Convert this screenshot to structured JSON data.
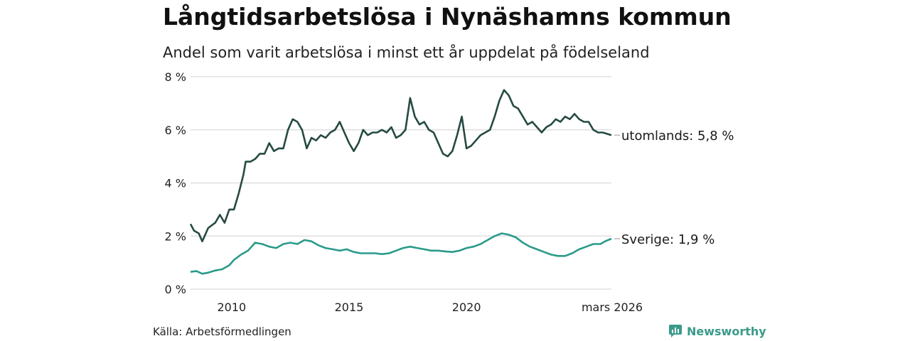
{
  "title": "Långtidsarbetslösa i Nynäshamns kommun",
  "subtitle": "Andel som varit arbetslösa i minst ett år uppdelat på födelseland",
  "source": "Källa: Arbetsförmedlingen",
  "brand": {
    "name": "Newsworthy",
    "icon": "newsworthy-logo-icon",
    "color": "#3a9a8a"
  },
  "chart_data": {
    "type": "line",
    "ylim": [
      0,
      8
    ],
    "xlim": [
      2008.25,
      2026.17
    ],
    "y_ticks": [
      0,
      2,
      4,
      6,
      8
    ],
    "y_tick_labels": [
      "0 %",
      "2 %",
      "4 %",
      "6 %",
      "8 %"
    ],
    "x_ticks": [
      2010,
      2015,
      2020,
      2026.17
    ],
    "x_tick_labels": [
      "2010",
      "2015",
      "2020",
      "mars 2026"
    ],
    "grid": true,
    "series": [
      {
        "name": "utomlands",
        "label": "utomlands: 5,8 %",
        "color": "#254a42",
        "points": [
          [
            2008.25,
            2.45
          ],
          [
            2008.4,
            2.2
          ],
          [
            2008.6,
            2.1
          ],
          [
            2008.75,
            1.8
          ],
          [
            2009.0,
            2.3
          ],
          [
            2009.3,
            2.5
          ],
          [
            2009.5,
            2.8
          ],
          [
            2009.7,
            2.5
          ],
          [
            2009.9,
            3.0
          ],
          [
            2010.1,
            3.0
          ],
          [
            2010.3,
            3.6
          ],
          [
            2010.5,
            4.3
          ],
          [
            2010.6,
            4.8
          ],
          [
            2010.8,
            4.8
          ],
          [
            2011.0,
            4.9
          ],
          [
            2011.2,
            5.1
          ],
          [
            2011.4,
            5.1
          ],
          [
            2011.6,
            5.5
          ],
          [
            2011.8,
            5.2
          ],
          [
            2012.0,
            5.3
          ],
          [
            2012.2,
            5.3
          ],
          [
            2012.4,
            6.0
          ],
          [
            2012.6,
            6.4
          ],
          [
            2012.8,
            6.3
          ],
          [
            2013.0,
            6.0
          ],
          [
            2013.2,
            5.3
          ],
          [
            2013.4,
            5.7
          ],
          [
            2013.6,
            5.6
          ],
          [
            2013.8,
            5.8
          ],
          [
            2014.0,
            5.7
          ],
          [
            2014.2,
            5.9
          ],
          [
            2014.4,
            6.0
          ],
          [
            2014.6,
            6.3
          ],
          [
            2014.8,
            5.9
          ],
          [
            2015.0,
            5.5
          ],
          [
            2015.2,
            5.2
          ],
          [
            2015.4,
            5.5
          ],
          [
            2015.6,
            6.0
          ],
          [
            2015.8,
            5.8
          ],
          [
            2016.0,
            5.9
          ],
          [
            2016.2,
            5.9
          ],
          [
            2016.4,
            6.0
          ],
          [
            2016.6,
            5.9
          ],
          [
            2016.8,
            6.1
          ],
          [
            2017.0,
            5.7
          ],
          [
            2017.2,
            5.8
          ],
          [
            2017.4,
            6.0
          ],
          [
            2017.6,
            7.2
          ],
          [
            2017.8,
            6.5
          ],
          [
            2018.0,
            6.2
          ],
          [
            2018.2,
            6.3
          ],
          [
            2018.4,
            6.0
          ],
          [
            2018.6,
            5.9
          ],
          [
            2018.8,
            5.5
          ],
          [
            2019.0,
            5.1
          ],
          [
            2019.2,
            5.0
          ],
          [
            2019.4,
            5.2
          ],
          [
            2019.6,
            5.8
          ],
          [
            2019.8,
            6.5
          ],
          [
            2020.0,
            5.3
          ],
          [
            2020.2,
            5.4
          ],
          [
            2020.4,
            5.6
          ],
          [
            2020.6,
            5.8
          ],
          [
            2020.8,
            5.9
          ],
          [
            2021.0,
            6.0
          ],
          [
            2021.2,
            6.5
          ],
          [
            2021.4,
            7.1
          ],
          [
            2021.6,
            7.5
          ],
          [
            2021.8,
            7.3
          ],
          [
            2022.0,
            6.9
          ],
          [
            2022.2,
            6.8
          ],
          [
            2022.4,
            6.5
          ],
          [
            2022.6,
            6.2
          ],
          [
            2022.8,
            6.3
          ],
          [
            2023.0,
            6.1
          ],
          [
            2023.2,
            5.9
          ],
          [
            2023.4,
            6.1
          ],
          [
            2023.6,
            6.2
          ],
          [
            2023.8,
            6.4
          ],
          [
            2024.0,
            6.3
          ],
          [
            2024.2,
            6.5
          ],
          [
            2024.4,
            6.4
          ],
          [
            2024.6,
            6.6
          ],
          [
            2024.8,
            6.4
          ],
          [
            2025.0,
            6.3
          ],
          [
            2025.2,
            6.3
          ],
          [
            2025.4,
            6.0
          ],
          [
            2025.6,
            5.9
          ],
          [
            2025.8,
            5.9
          ],
          [
            2026.17,
            5.8
          ]
        ]
      },
      {
        "name": "Sverige",
        "label": "Sverige: 1,9 %",
        "color": "#2a9a8a",
        "points": [
          [
            2008.25,
            0.65
          ],
          [
            2008.5,
            0.68
          ],
          [
            2008.75,
            0.58
          ],
          [
            2009.0,
            0.62
          ],
          [
            2009.3,
            0.7
          ],
          [
            2009.6,
            0.75
          ],
          [
            2009.9,
            0.9
          ],
          [
            2010.1,
            1.1
          ],
          [
            2010.4,
            1.3
          ],
          [
            2010.7,
            1.45
          ],
          [
            2011.0,
            1.75
          ],
          [
            2011.3,
            1.7
          ],
          [
            2011.6,
            1.6
          ],
          [
            2011.9,
            1.55
          ],
          [
            2012.2,
            1.7
          ],
          [
            2012.5,
            1.75
          ],
          [
            2012.8,
            1.7
          ],
          [
            2013.1,
            1.85
          ],
          [
            2013.4,
            1.8
          ],
          [
            2013.7,
            1.65
          ],
          [
            2014.0,
            1.55
          ],
          [
            2014.3,
            1.5
          ],
          [
            2014.6,
            1.45
          ],
          [
            2014.9,
            1.5
          ],
          [
            2015.2,
            1.4
          ],
          [
            2015.5,
            1.35
          ],
          [
            2015.8,
            1.35
          ],
          [
            2016.1,
            1.35
          ],
          [
            2016.4,
            1.32
          ],
          [
            2016.7,
            1.35
          ],
          [
            2017.0,
            1.45
          ],
          [
            2017.3,
            1.55
          ],
          [
            2017.6,
            1.6
          ],
          [
            2017.9,
            1.55
          ],
          [
            2018.2,
            1.5
          ],
          [
            2018.5,
            1.45
          ],
          [
            2018.8,
            1.45
          ],
          [
            2019.1,
            1.42
          ],
          [
            2019.4,
            1.4
          ],
          [
            2019.7,
            1.45
          ],
          [
            2020.0,
            1.55
          ],
          [
            2020.3,
            1.6
          ],
          [
            2020.6,
            1.7
          ],
          [
            2020.9,
            1.85
          ],
          [
            2021.2,
            2.0
          ],
          [
            2021.5,
            2.1
          ],
          [
            2021.8,
            2.05
          ],
          [
            2022.1,
            1.95
          ],
          [
            2022.4,
            1.75
          ],
          [
            2022.7,
            1.6
          ],
          [
            2023.0,
            1.5
          ],
          [
            2023.3,
            1.4
          ],
          [
            2023.6,
            1.3
          ],
          [
            2023.9,
            1.25
          ],
          [
            2024.2,
            1.25
          ],
          [
            2024.5,
            1.35
          ],
          [
            2024.8,
            1.5
          ],
          [
            2025.1,
            1.6
          ],
          [
            2025.4,
            1.7
          ],
          [
            2025.7,
            1.7
          ],
          [
            2025.9,
            1.8
          ],
          [
            2026.17,
            1.9
          ]
        ]
      }
    ]
  }
}
